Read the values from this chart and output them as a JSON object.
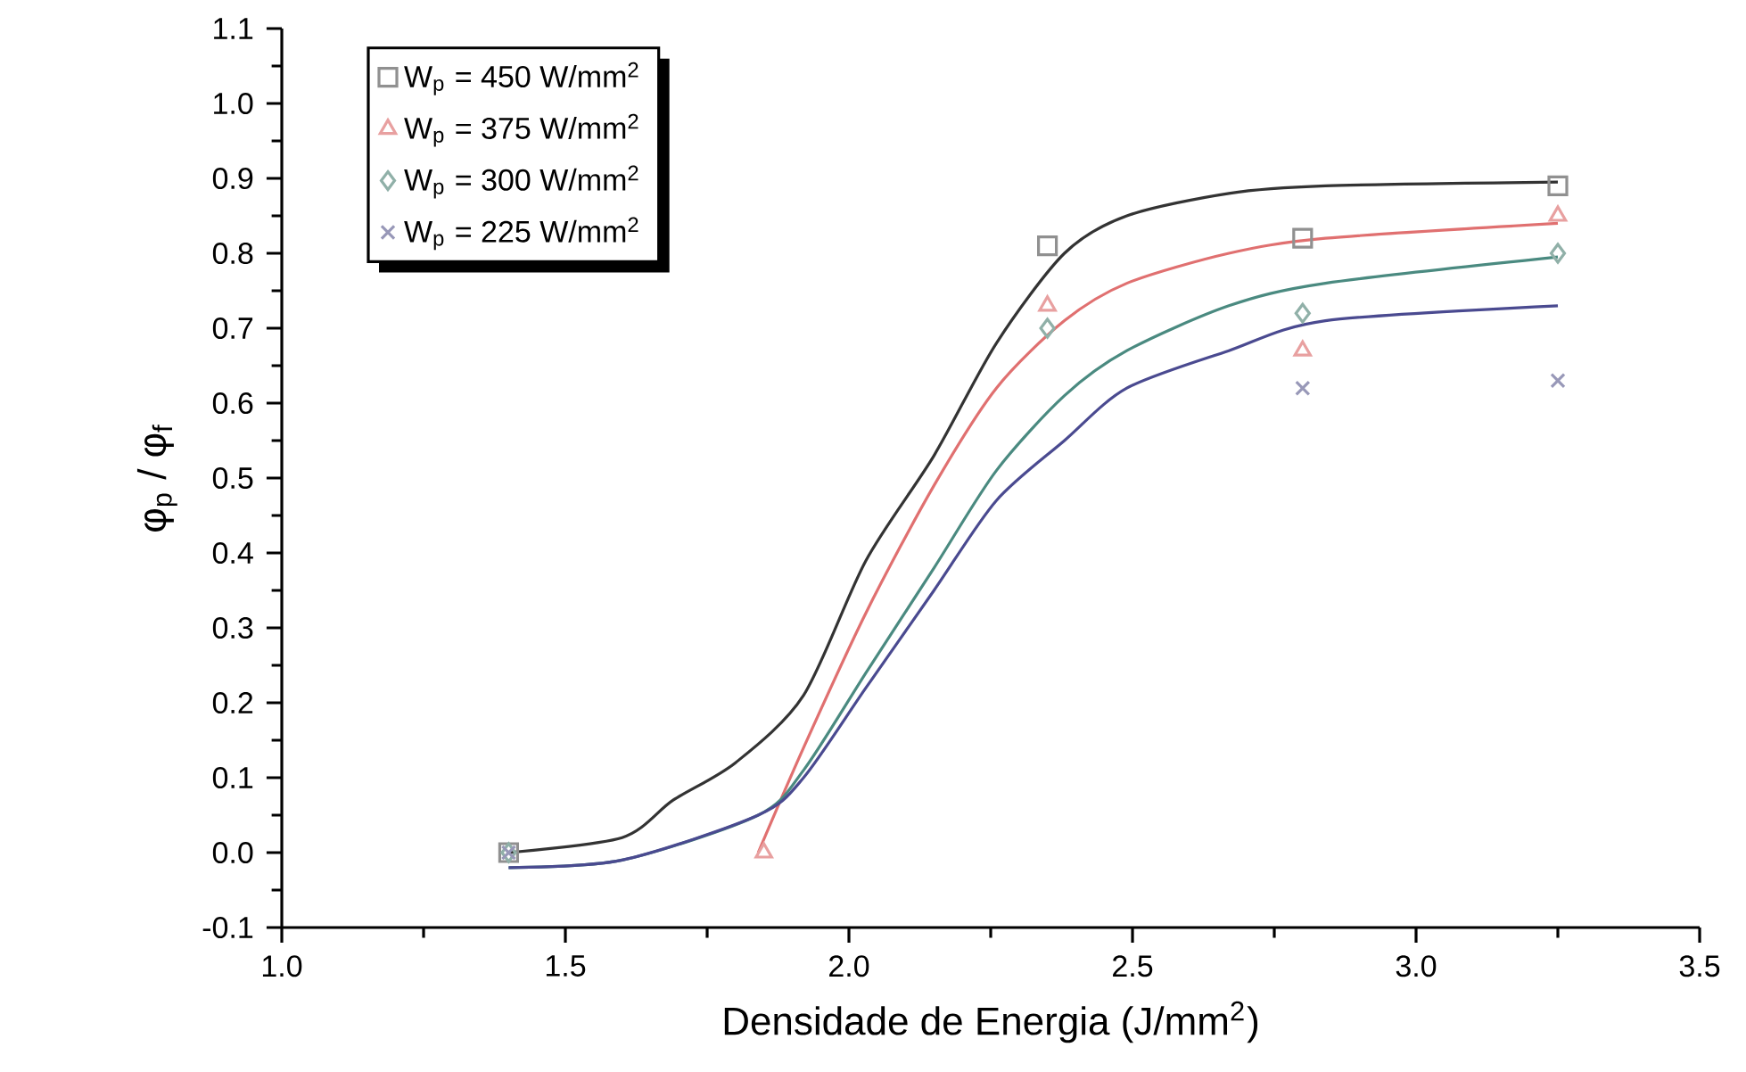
{
  "chart_data": {
    "type": "line",
    "xlabel": "Densidade de Energia (J/mm$^{2}$)",
    "ylabel": "φ$_{p}$ / φ$_{f}$",
    "xlim": [
      1.0,
      3.5
    ],
    "xticks": [
      {
        "value": 1.0,
        "label": "1.0"
      },
      {
        "value": 1.5,
        "label": "1.5"
      },
      {
        "value": 2.0,
        "label": "2.0"
      },
      {
        "value": 2.5,
        "label": "2.5"
      },
      {
        "value": 3.0,
        "label": "3.0"
      },
      {
        "value": 3.5,
        "label": "3.5"
      }
    ],
    "ylim": [
      -0.1,
      1.1
    ],
    "yticks": [
      {
        "value": -0.1,
        "label": "-0.1"
      },
      {
        "value": 0.0,
        "label": "0.0"
      },
      {
        "value": 0.1,
        "label": "0.1"
      },
      {
        "value": 0.2,
        "label": "0.2"
      },
      {
        "value": 0.3,
        "label": "0.3"
      },
      {
        "value": 0.4,
        "label": "0.4"
      },
      {
        "value": 0.5,
        "label": "0.5"
      },
      {
        "value": 0.6,
        "label": "0.6"
      },
      {
        "value": 0.7,
        "label": "0.7"
      },
      {
        "value": 0.8,
        "label": "0.8"
      },
      {
        "value": 0.9,
        "label": "0.9"
      },
      {
        "value": 1.0,
        "label": "1.0"
      },
      {
        "value": 1.1,
        "label": "1.1"
      }
    ],
    "legend": "top left",
    "series": [
      {
        "name": "W$_{p}$ = 450 W/mm$^{2}$",
        "type": "scatter",
        "marker": "square",
        "color": "#909090",
        "x": [
          1.4,
          2.35,
          2.8,
          3.25
        ],
        "values": [
          0.0,
          0.81,
          0.82,
          0.89
        ]
      },
      {
        "name": "W$_{p}$ = 375 W/mm$^{2}$",
        "type": "scatter",
        "marker": "triangle",
        "color": "#e8a0a0",
        "x": [
          1.85,
          2.35,
          2.8,
          3.25
        ],
        "values": [
          0.0,
          0.73,
          0.67,
          0.85
        ]
      },
      {
        "name": "W$_{p}$ = 300 W/mm$^{2}$",
        "type": "scatter",
        "marker": "diamond",
        "color": "#90b0a8",
        "x": [
          1.4,
          2.35,
          2.8,
          3.25
        ],
        "values": [
          0.0,
          0.7,
          0.72,
          0.8
        ]
      },
      {
        "name": "W$_{p}$ = 225 W/mm$^{2}$",
        "type": "scatter",
        "marker": "cross",
        "color": "#9898b8",
        "x": [
          1.4,
          2.8,
          3.25
        ],
        "values": [
          0.0,
          0.62,
          0.63
        ]
      },
      {
        "color": "#333333",
        "x": [
          1.4,
          1.6,
          1.69,
          1.8,
          1.92,
          2.03,
          2.15,
          2.26,
          2.38,
          2.49,
          2.67,
          2.84,
          3.25
        ],
        "values": [
          0.0,
          0.02,
          0.07,
          0.12,
          0.21,
          0.39,
          0.53,
          0.68,
          0.8,
          0.85,
          0.88,
          0.89,
          0.895
        ]
      },
      {
        "color": "#e07070",
        "x": [
          1.84,
          1.92,
          2.03,
          2.15,
          2.26,
          2.38,
          2.49,
          2.67,
          2.84,
          3.25
        ],
        "values": [
          0.0,
          0.14,
          0.32,
          0.49,
          0.62,
          0.71,
          0.76,
          0.8,
          0.82,
          0.84
        ]
      },
      {
        "color": "#4a8a80",
        "x": [
          1.4,
          1.6,
          1.84,
          1.92,
          2.03,
          2.15,
          2.26,
          2.38,
          2.49,
          2.67,
          2.84,
          3.25
        ],
        "values": [
          -0.02,
          -0.01,
          0.05,
          0.11,
          0.24,
          0.38,
          0.51,
          0.61,
          0.67,
          0.73,
          0.76,
          0.795
        ]
      },
      {
        "color": "#4a4a90",
        "x": [
          1.4,
          1.6,
          1.84,
          1.92,
          2.03,
          2.15,
          2.26,
          2.38,
          2.49,
          2.67,
          2.84,
          3.25
        ],
        "values": [
          -0.02,
          -0.01,
          0.05,
          0.1,
          0.22,
          0.35,
          0.47,
          0.55,
          0.62,
          0.67,
          0.71,
          0.73
        ]
      }
    ]
  }
}
